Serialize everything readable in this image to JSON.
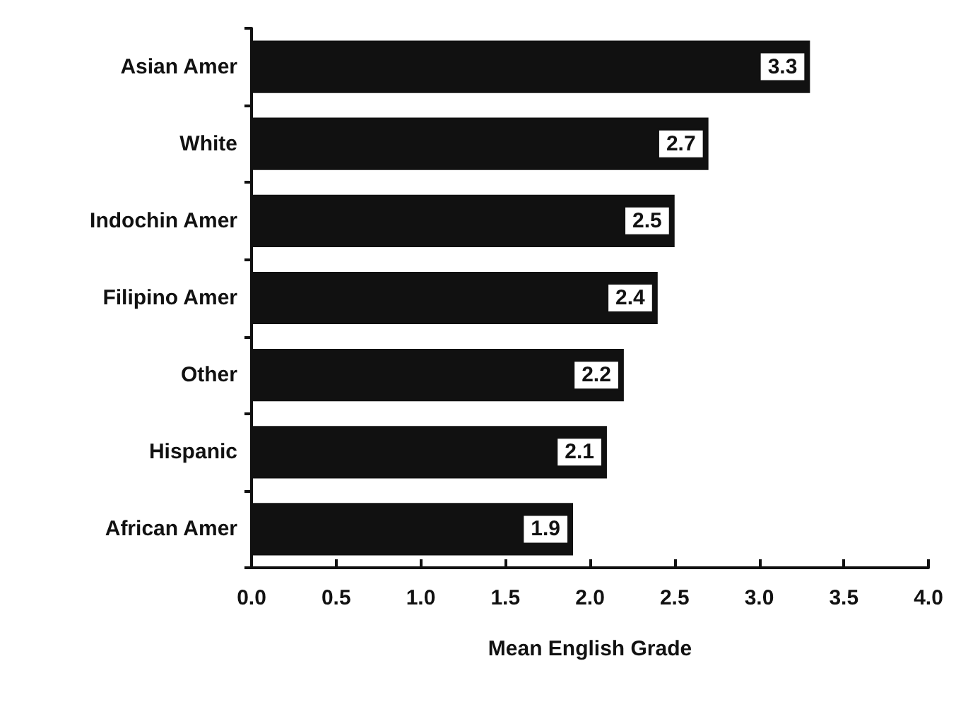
{
  "chart_data": {
    "type": "bar",
    "orientation": "horizontal",
    "xlabel": "Mean English Grade",
    "categories": [
      "Asian Amer",
      "White",
      "Indochin Amer",
      "Filipino Amer",
      "Other",
      "Hispanic",
      "African Amer"
    ],
    "values": [
      3.3,
      2.7,
      2.5,
      2.4,
      2.2,
      2.1,
      1.9
    ],
    "color": "#111111",
    "xlim": [
      0,
      4
    ],
    "xticks": [
      {
        "value": 0,
        "label": "0.0"
      },
      {
        "value": 0.5,
        "label": "0.5"
      },
      {
        "value": 1,
        "label": "1.0"
      },
      {
        "value": 1.5,
        "label": "1.5"
      },
      {
        "value": 2,
        "label": "2.0"
      },
      {
        "value": 2.5,
        "label": "2.5"
      },
      {
        "value": 3,
        "label": "3.0"
      },
      {
        "value": 3.5,
        "label": "3.5"
      },
      {
        "value": 4,
        "label": "4.0"
      }
    ],
    "data_labels": true,
    "grid": false
  }
}
